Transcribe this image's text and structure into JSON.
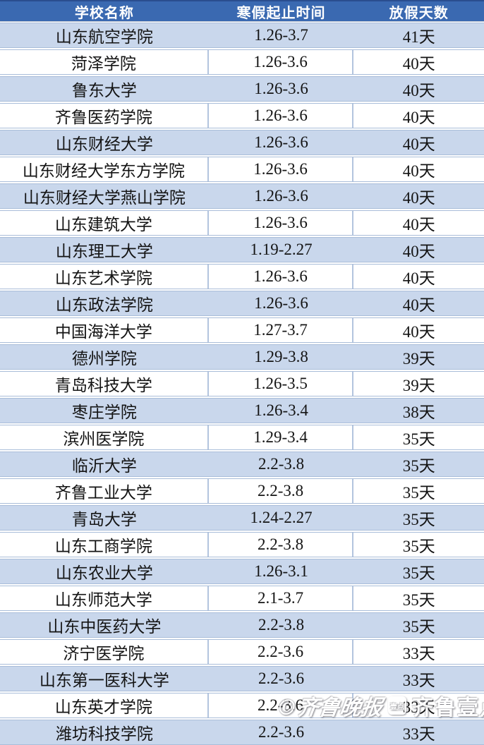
{
  "table": {
    "columns": [
      "学校名称",
      "寒假起止时间",
      "放假天数"
    ],
    "rows": [
      {
        "school": "山东航空学院",
        "dates": "1.26-3.7",
        "days": "41天"
      },
      {
        "school": "菏泽学院",
        "dates": "1.26-3.6",
        "days": "40天"
      },
      {
        "school": "鲁东大学",
        "dates": "1.26-3.6",
        "days": "40天"
      },
      {
        "school": "齐鲁医药学院",
        "dates": "1.26-3.6",
        "days": "40天"
      },
      {
        "school": "山东财经大学",
        "dates": "1.26-3.6",
        "days": "40天"
      },
      {
        "school": "山东财经大学东方学院",
        "dates": "1.26-3.6",
        "days": "40天"
      },
      {
        "school": "山东财经大学燕山学院",
        "dates": "1.26-3.6",
        "days": "40天"
      },
      {
        "school": "山东建筑大学",
        "dates": "1.26-3.6",
        "days": "40天"
      },
      {
        "school": "山东理工大学",
        "dates": "1.19-2.27",
        "days": "40天"
      },
      {
        "school": "山东艺术学院",
        "dates": "1.26-3.6",
        "days": "40天"
      },
      {
        "school": "山东政法学院",
        "dates": "1.26-3.6",
        "days": "40天"
      },
      {
        "school": "中国海洋大学",
        "dates": "1.27-3.7",
        "days": "40天"
      },
      {
        "school": "德州学院",
        "dates": "1.29-3.8",
        "days": "39天"
      },
      {
        "school": "青岛科技大学",
        "dates": "1.26-3.5",
        "days": "39天"
      },
      {
        "school": "枣庄学院",
        "dates": "1.26-3.4",
        "days": "38天"
      },
      {
        "school": "滨州医学院",
        "dates": "1.29-3.4",
        "days": "35天"
      },
      {
        "school": "临沂大学",
        "dates": "2.2-3.8",
        "days": "35天"
      },
      {
        "school": "齐鲁工业大学",
        "dates": "2.2-3.8",
        "days": "35天"
      },
      {
        "school": "青岛大学",
        "dates": "1.24-2.27",
        "days": "35天"
      },
      {
        "school": "山东工商学院",
        "dates": "2.2-3.8",
        "days": "35天"
      },
      {
        "school": "山东农业大学",
        "dates": "1.26-3.1",
        "days": "35天"
      },
      {
        "school": "山东师范大学",
        "dates": "2.1-3.7",
        "days": "35天"
      },
      {
        "school": "山东中医药大学",
        "dates": "2.2-3.8",
        "days": "35天"
      },
      {
        "school": "济宁医学院",
        "dates": "2.2-3.6",
        "days": "33天"
      },
      {
        "school": "山东第一医科大学",
        "dates": "2.2-3.6",
        "days": "33天"
      },
      {
        "school": "山东英才学院",
        "dates": "2.2-3.6",
        "days": "33天"
      },
      {
        "school": "潍坊科技学院",
        "dates": "2.2-3.6",
        "days": "33天"
      }
    ]
  },
  "watermark": {
    "credit": "©齐鲁晚报",
    "badge": "壹点",
    "brand": "齐鲁壹点"
  },
  "colors": {
    "header_bg": "#3a69b1",
    "header_text": "#ffffff",
    "alt_row_bg": "#c9d7ec",
    "row_border": "#a9bdd9",
    "body_text": "#141414"
  }
}
